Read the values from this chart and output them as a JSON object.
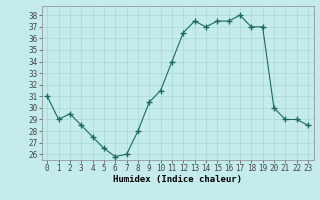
{
  "x": [
    0,
    1,
    2,
    3,
    4,
    5,
    6,
    7,
    8,
    9,
    10,
    11,
    12,
    13,
    14,
    15,
    16,
    17,
    18,
    19,
    20,
    21,
    22,
    23
  ],
  "y": [
    31,
    29,
    29.5,
    28.5,
    27.5,
    26.5,
    25.8,
    26,
    28,
    30.5,
    31.5,
    34,
    36.5,
    37.5,
    37,
    37.5,
    37.5,
    38,
    37,
    37,
    30,
    29,
    29,
    28.5
  ],
  "line_color": "#1a6b5e",
  "marker": "+",
  "marker_size": 4,
  "linewidth": 0.8,
  "background_color": "#c5ecec",
  "grid_color": "#a8d8d8",
  "xlabel": "Humidex (Indice chaleur)",
  "ylim": [
    25.5,
    38.8
  ],
  "xlim": [
    -0.5,
    23.5
  ],
  "yticks": [
    26,
    27,
    28,
    29,
    30,
    31,
    32,
    33,
    34,
    35,
    36,
    37,
    38
  ],
  "xticks": [
    0,
    1,
    2,
    3,
    4,
    5,
    6,
    7,
    8,
    9,
    10,
    11,
    12,
    13,
    14,
    15,
    16,
    17,
    18,
    19,
    20,
    21,
    22,
    23
  ],
  "xtick_labels": [
    "0",
    "1",
    "2",
    "3",
    "4",
    "5",
    "6",
    "7",
    "8",
    "9",
    "10",
    "11",
    "12",
    "13",
    "14",
    "15",
    "16",
    "17",
    "18",
    "19",
    "20",
    "21",
    "22",
    "23"
  ],
  "label_fontsize": 6.5,
  "tick_fontsize": 5.5
}
